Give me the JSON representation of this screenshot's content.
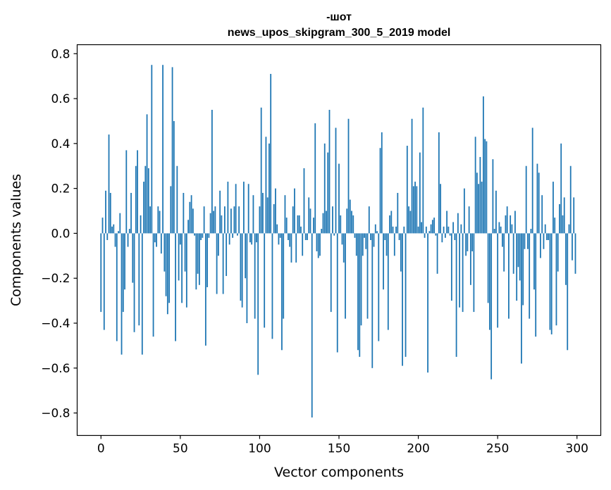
{
  "chart_data": {
    "type": "bar",
    "title_lines": [
      "-шот",
      "news_upos_skipgram_300_5_2019 model"
    ],
    "xlabel": "Vector components",
    "ylabel": "Components values",
    "xlim": [
      -15,
      315
    ],
    "ylim": [
      -0.9,
      0.84
    ],
    "xticks": [
      0,
      50,
      100,
      150,
      200,
      250,
      300
    ],
    "xtick_labels": [
      "0",
      "50",
      "100",
      "150",
      "200",
      "250",
      "300"
    ],
    "yticks": [
      -0.8,
      -0.6,
      -0.4,
      -0.2,
      0.0,
      0.2,
      0.4,
      0.6,
      0.8
    ],
    "ytick_labels": [
      "−0.8",
      "−0.6",
      "−0.4",
      "−0.2",
      "0.0",
      "0.2",
      "0.4",
      "0.6",
      "0.8"
    ],
    "grid": false,
    "bar_color": "#1f77b4",
    "series": [
      {
        "values": [
          -0.35,
          0.07,
          -0.43,
          0.19,
          -0.03,
          0.44,
          0.18,
          0.03,
          0.04,
          -0.06,
          -0.48,
          0.01,
          0.09,
          -0.54,
          -0.35,
          -0.25,
          0.37,
          -0.06,
          0.02,
          0.18,
          -0.22,
          -0.44,
          0.3,
          0.37,
          -0.41,
          0.08,
          -0.54,
          0.23,
          0.3,
          0.53,
          0.29,
          0.12,
          0.75,
          -0.46,
          -0.04,
          -0.06,
          0.12,
          0.1,
          -0.09,
          0.75,
          -0.17,
          -0.28,
          -0.36,
          -0.31,
          0.21,
          0.74,
          0.5,
          -0.48,
          0.3,
          -0.21,
          -0.05,
          -0.31,
          0.18,
          -0.17,
          -0.33,
          0.06,
          0.14,
          0.17,
          0.11,
          -0.01,
          -0.25,
          -0.18,
          -0.23,
          -0.03,
          -0.02,
          0.12,
          -0.5,
          -0.24,
          -0.02,
          0.09,
          0.55,
          0.1,
          0.12,
          -0.27,
          -0.1,
          0.19,
          0.08,
          -0.27,
          0.12,
          -0.19,
          0.23,
          -0.05,
          0.11,
          -0.02,
          0.12,
          0.22,
          -0.01,
          0.12,
          -0.3,
          -0.33,
          0.23,
          -0.2,
          -0.4,
          0.22,
          -0.04,
          -0.05,
          0.17,
          -0.38,
          -0.04,
          -0.63,
          0.12,
          0.56,
          0.18,
          -0.42,
          0.43,
          0.16,
          0.4,
          0.71,
          -0.47,
          0.13,
          0.2,
          0.04,
          -0.05,
          -0.02,
          -0.52,
          -0.38,
          0.17,
          0.07,
          -0.03,
          -0.06,
          -0.13,
          0.12,
          0.2,
          -0.13,
          0.08,
          0.08,
          0.03,
          -0.1,
          0.29,
          -0.03,
          -0.03,
          0.16,
          0.11,
          -0.82,
          0.07,
          0.49,
          -0.08,
          -0.11,
          -0.1,
          0.02,
          0.09,
          0.4,
          0.1,
          0.36,
          0.55,
          -0.35,
          0.12,
          -0.01,
          0.47,
          -0.53,
          0.31,
          0.08,
          -0.05,
          -0.13,
          -0.38,
          0.11,
          0.51,
          0.15,
          0.1,
          0.08,
          -0.02,
          -0.1,
          -0.52,
          -0.55,
          -0.41,
          -0.1,
          -0.02,
          -0.07,
          -0.38,
          0.12,
          -0.03,
          -0.6,
          -0.06,
          0.04,
          0.01,
          -0.48,
          0.38,
          0.45,
          -0.25,
          -0.03,
          -0.1,
          -0.43,
          0.08,
          0.1,
          0.03,
          -0.1,
          0.03,
          0.18,
          -0.03,
          -0.17,
          -0.59,
          0.03,
          -0.55,
          0.39,
          0.12,
          0.1,
          0.51,
          0.21,
          0.23,
          0.21,
          0.03,
          0.36,
          0.05,
          0.56,
          -0.02,
          0.03,
          -0.62,
          0.01,
          0.04,
          0.06,
          0.07,
          -0.01,
          -0.18,
          0.45,
          0.22,
          -0.04,
          0.03,
          -0.02,
          0.1,
          0.03,
          -0.01,
          -0.3,
          0.05,
          -0.03,
          -0.55,
          0.09,
          -0.33,
          0.04,
          -0.35,
          0.2,
          -0.1,
          -0.08,
          0.12,
          -0.23,
          -0.08,
          -0.35,
          0.43,
          0.27,
          0.22,
          0.34,
          0.23,
          0.61,
          0.42,
          0.41,
          -0.31,
          -0.43,
          -0.65,
          0.33,
          0.02,
          0.19,
          -0.42,
          0.05,
          0.03,
          -0.06,
          -0.17,
          0.08,
          0.12,
          -0.38,
          0.08,
          0.04,
          -0.18,
          0.1,
          -0.3,
          -0.15,
          -0.21,
          -0.58,
          -0.32,
          -0.07,
          0.3,
          -0.07,
          -0.38,
          0.02,
          0.47,
          -0.25,
          -0.46,
          0.31,
          0.27,
          -0.11,
          0.17,
          -0.07,
          0.04,
          -0.03,
          -0.03,
          -0.43,
          -0.45,
          0.23,
          0.07,
          -0.41,
          -0.17,
          0.13,
          0.4,
          0.08,
          0.16,
          -0.23,
          -0.52,
          0.04,
          0.3,
          -0.12,
          0.16,
          -0.18
        ]
      }
    ]
  }
}
